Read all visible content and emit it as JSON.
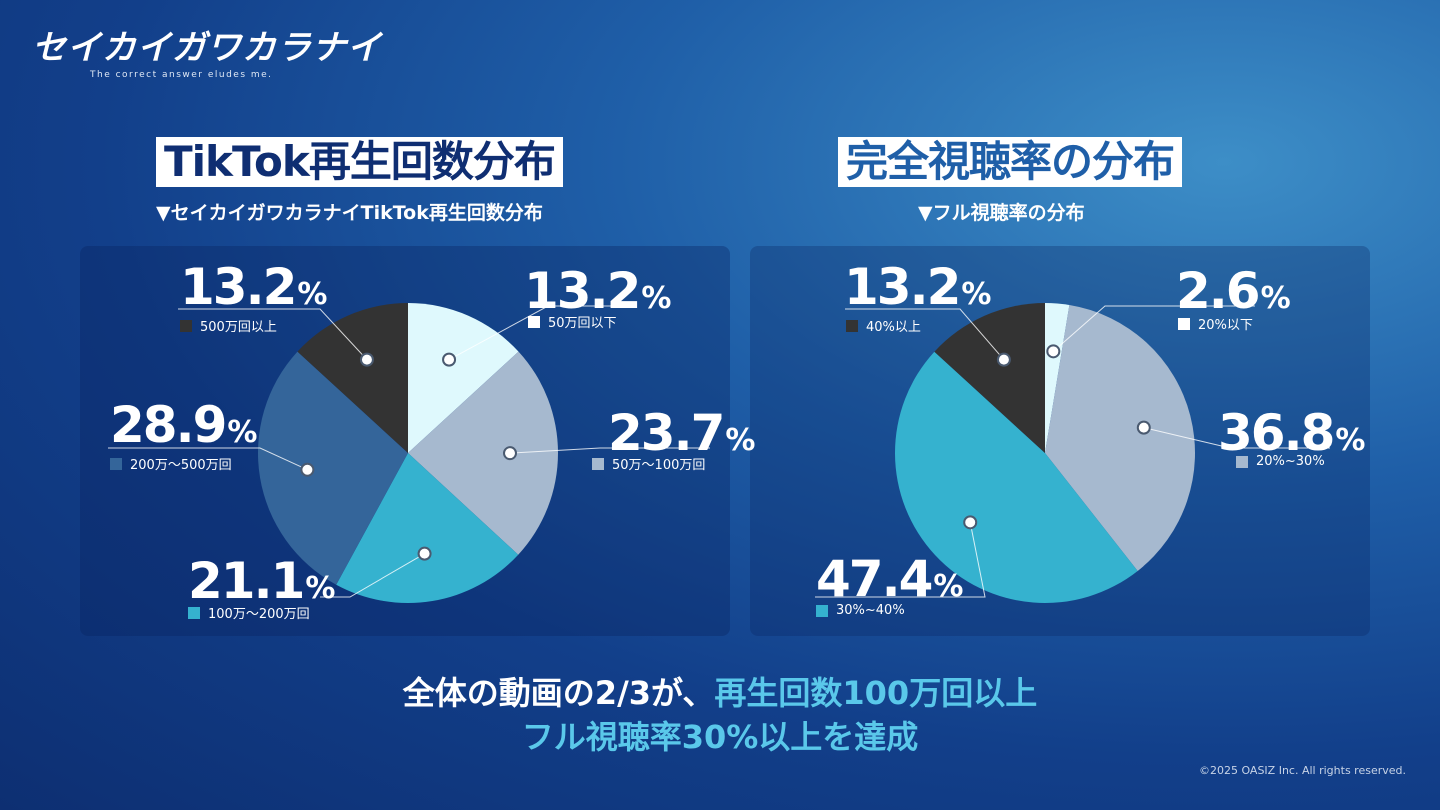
{
  "logo": {
    "main": "セイカイガワカラナイ",
    "sub": "The correct answer eludes me."
  },
  "colors": {
    "darkest": "#333333",
    "lightest": "#dff9fd",
    "light_gray": "#a6b9cf",
    "cyan": "#35b2cf",
    "steel": "#34659a"
  },
  "chart_data": [
    {
      "type": "pie",
      "title": "TikTok再生回数分布",
      "subtitle": "▼セイカイガワカラナイTikTok再生回数分布",
      "slices": [
        {
          "label": "50万回以下",
          "value": 13.2,
          "color": "#dff9fd"
        },
        {
          "label": "50万～100万回",
          "value": 23.7,
          "color": "#a6b9cf"
        },
        {
          "label": "100万～200万回",
          "value": 21.1,
          "color": "#35b2cf"
        },
        {
          "label": "200万～500万回",
          "value": 28.9,
          "color": "#34659a"
        },
        {
          "label": "500万回以上",
          "value": 13.2,
          "color": "#333333"
        }
      ]
    },
    {
      "type": "pie",
      "title": "完全視聴率の分布",
      "subtitle": "▼フル視聴率の分布",
      "slices": [
        {
          "label": "20%以下",
          "value": 2.6,
          "color": "#dff9fd"
        },
        {
          "label": "20%~30%",
          "value": 36.8,
          "color": "#a6b9cf"
        },
        {
          "label": "30%~40%",
          "value": 47.4,
          "color": "#35b2cf"
        },
        {
          "label": "40%以上",
          "value": 13.2,
          "color": "#333333"
        }
      ]
    }
  ],
  "labels": {
    "left": [
      {
        "num": "13.2",
        "sym": "%",
        "legend": "50万回以下"
      },
      {
        "num": "23.7",
        "sym": "%",
        "legend": "50万～100万回"
      },
      {
        "num": "21.1",
        "sym": "%",
        "legend": "100万～200万回"
      },
      {
        "num": "28.9",
        "sym": "%",
        "legend": "200万～500万回"
      },
      {
        "num": "13.2",
        "sym": "%",
        "legend": "500万回以上"
      }
    ],
    "right": [
      {
        "num": "2.6",
        "sym": "%",
        "legend": "20%以下"
      },
      {
        "num": "36.8",
        "sym": "%",
        "legend": "20%~30%"
      },
      {
        "num": "47.4",
        "sym": "%",
        "legend": "30%~40%"
      },
      {
        "num": "13.2",
        "sym": "%",
        "legend": "40%以上"
      }
    ]
  },
  "conclusion": {
    "line1_prefix": "全体の動画の2/3が、",
    "line1_highlight": "再生回数100万回以上",
    "line2": "フル視聴率30%以上を達成"
  },
  "copyright": "©2025 OASIZ Inc. All rights reserved."
}
